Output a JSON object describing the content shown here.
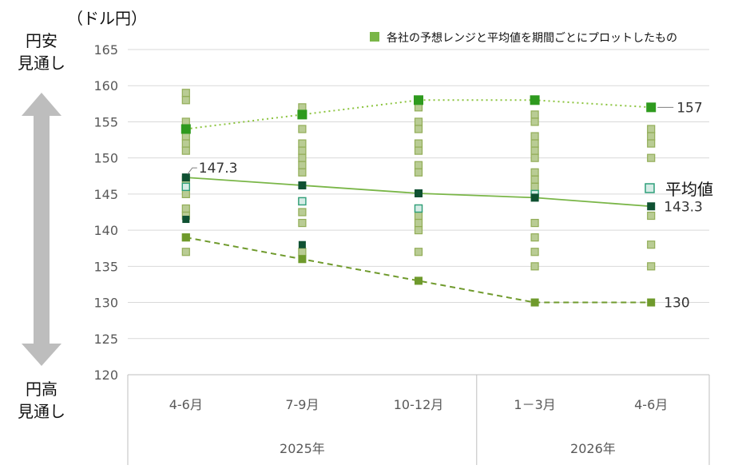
{
  "colors": {
    "range": "#b9cc94",
    "range_border": "#92ad57",
    "range_avg_fill": "#d6ece6",
    "range_avg_border": "#2f9f7a",
    "avg": "#7ab648",
    "avg_marker": "#0f5132",
    "high": "#2e9a1e",
    "high_line": "#8cc43f",
    "low": "#6f9a2c",
    "arrow": "#bdbdbd",
    "grid": "#d9d9d9"
  },
  "chart_data": {
    "type": "scatter",
    "unit_label": "（ドル円）",
    "yticks": [
      120,
      125,
      130,
      135,
      140,
      145,
      150,
      155,
      160,
      165
    ],
    "ylim": [
      120,
      165
    ],
    "categories": [
      "4-6月",
      "7-9月",
      "10-12月",
      "1－3月",
      "4-6月"
    ],
    "year_groups": [
      {
        "label": "2025年",
        "span": [
          0,
          2
        ]
      },
      {
        "label": "2026年",
        "span": [
          3,
          4
        ]
      }
    ],
    "side_labels": {
      "top": [
        "円安",
        "見通し"
      ],
      "bottom": [
        "円高",
        "見通し"
      ]
    },
    "legend": "各社の予想レンジと平均値を期間ごとにプロットしたもの",
    "forecasts": [
      [
        159,
        158,
        155,
        153,
        152,
        151,
        147,
        146,
        145,
        143,
        142,
        139,
        137
      ],
      [
        157,
        156,
        154,
        152,
        151,
        150,
        149,
        148,
        144,
        142.5,
        141,
        137
      ],
      [
        157,
        155,
        154,
        152,
        151,
        149,
        148,
        143,
        142,
        141,
        140,
        137
      ],
      [
        156,
        155,
        153,
        152,
        151,
        150,
        148,
        147,
        146,
        145,
        141,
        139,
        137,
        135
      ],
      [
        154,
        153,
        152,
        150,
        142,
        138,
        135
      ]
    ],
    "series": [
      {
        "name": "high",
        "values": [
          154,
          156,
          158,
          158,
          157
        ],
        "style": "dotted"
      },
      {
        "name": "平均値",
        "values": [
          147.3,
          146.2,
          145.1,
          144.5,
          143.3
        ],
        "style": "solid"
      },
      {
        "name": "low",
        "values": [
          139,
          136,
          133,
          130,
          130
        ],
        "style": "dashed"
      }
    ],
    "extra_markers": [
      {
        "cat": 0,
        "value": 141.5,
        "color": "avg_marker"
      },
      {
        "cat": 1,
        "value": 138,
        "color": "avg_marker"
      }
    ],
    "avg_highlight": [
      146,
      144,
      143,
      145
    ],
    "labels": [
      {
        "text": "147.3",
        "cat": 0,
        "value": 147.3,
        "side": "right"
      },
      {
        "text": "157",
        "cat": 4,
        "value": 157,
        "side": "right"
      },
      {
        "text": "143.3",
        "cat": 4,
        "value": 143.3,
        "side": "right"
      },
      {
        "text": "130",
        "cat": 4,
        "value": 130,
        "side": "right"
      }
    ],
    "avg_legend": "平均値"
  }
}
